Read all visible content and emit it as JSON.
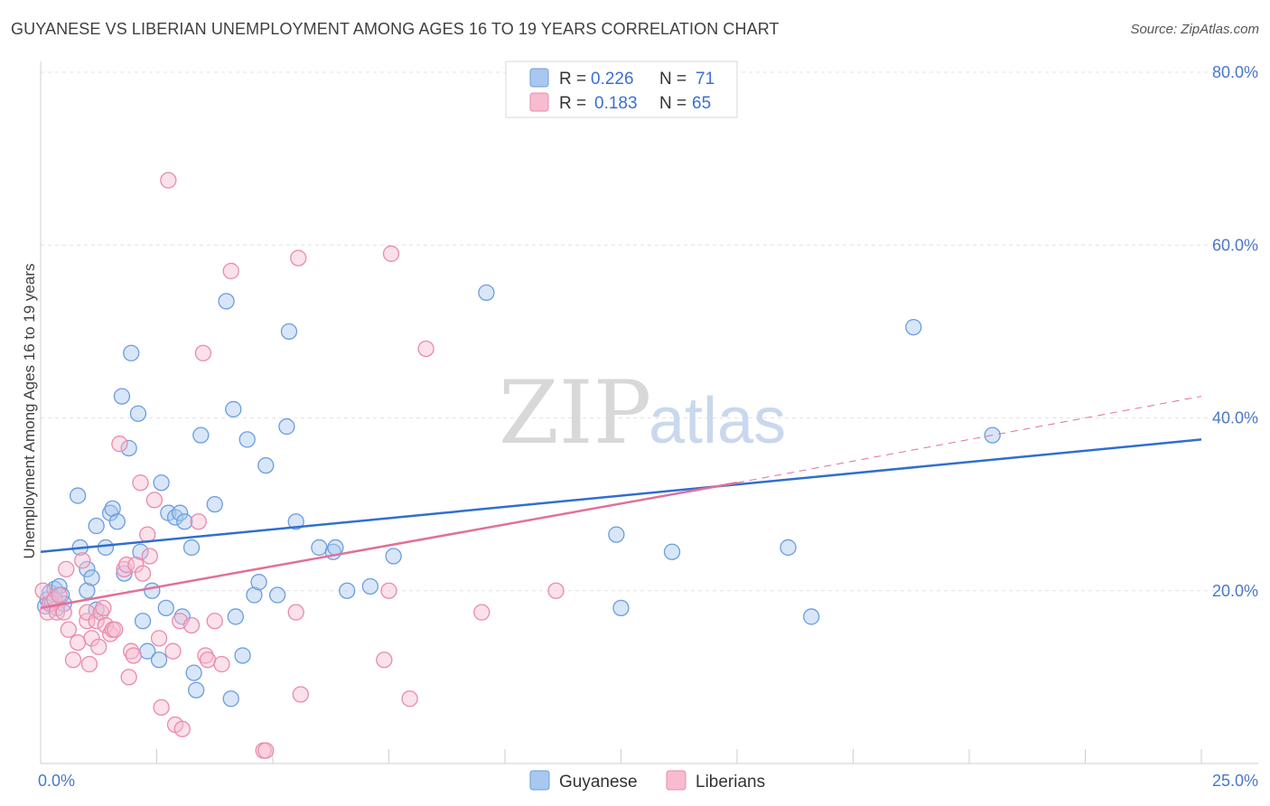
{
  "title": "GUYANESE VS LIBERIAN UNEMPLOYMENT AMONG AGES 16 TO 19 YEARS CORRELATION CHART",
  "source": "Source: ZipAtlas.com",
  "watermark": {
    "zip": "ZIP",
    "atlas": "atlas"
  },
  "legend": {
    "rows": [
      {
        "r_label": "R =",
        "r_value": "0.226",
        "n_label": "N =",
        "n_value": "71",
        "color": "#a9c8f0",
        "stroke": "#6b9de0"
      },
      {
        "r_label": "R =",
        "r_value": "0.183",
        "n_label": "N =",
        "n_value": "65",
        "color": "#f7bcd0",
        "stroke": "#ea8aab"
      }
    ]
  },
  "bottom_legend": [
    {
      "label": "Guyanese",
      "color": "#a9c8f0",
      "stroke": "#6b9de0"
    },
    {
      "label": "Liberians",
      "color": "#f7bcd0",
      "stroke": "#ea8aab"
    }
  ],
  "chart_data": {
    "type": "scatter",
    "xlabel": "",
    "ylabel": "Unemployment Among Ages 16 to 19 years",
    "xlim": [
      0,
      25
    ],
    "ylim": [
      0,
      80
    ],
    "x_tick_labels": [
      {
        "value": 0,
        "label": "0.0%"
      },
      {
        "value": 25,
        "label": "25.0%"
      }
    ],
    "y_tick_labels": [
      {
        "value": 20,
        "label": "20.0%"
      },
      {
        "value": 40,
        "label": "40.0%"
      },
      {
        "value": 60,
        "label": "60.0%"
      },
      {
        "value": 80,
        "label": "80.0%"
      }
    ],
    "grid": true,
    "series": [
      {
        "name": "Guyanese",
        "color": "#6b9de0",
        "fill": "#a9c8f0",
        "trend": {
          "x": [
            0,
            25
          ],
          "y": [
            24.5,
            37.5
          ],
          "color": "#2f6fcf"
        },
        "points": [
          [
            0.1,
            18.2
          ],
          [
            0.15,
            19.0
          ],
          [
            0.2,
            19.8
          ],
          [
            0.25,
            18.6
          ],
          [
            0.3,
            20.2
          ],
          [
            0.35,
            18.0
          ],
          [
            0.4,
            20.5
          ],
          [
            0.45,
            19.5
          ],
          [
            0.5,
            18.5
          ],
          [
            0.8,
            31.0
          ],
          [
            0.85,
            25.0
          ],
          [
            1.0,
            22.5
          ],
          [
            1.0,
            20.0
          ],
          [
            1.1,
            21.5
          ],
          [
            1.2,
            17.8
          ],
          [
            1.2,
            27.5
          ],
          [
            1.4,
            25.0
          ],
          [
            1.5,
            29.0
          ],
          [
            1.55,
            29.5
          ],
          [
            1.65,
            28.0
          ],
          [
            1.75,
            42.5
          ],
          [
            1.8,
            22.0
          ],
          [
            1.9,
            36.5
          ],
          [
            1.95,
            47.5
          ],
          [
            2.1,
            40.5
          ],
          [
            2.15,
            24.5
          ],
          [
            2.2,
            16.5
          ],
          [
            2.3,
            13.0
          ],
          [
            2.4,
            20.0
          ],
          [
            2.55,
            12.0
          ],
          [
            2.6,
            32.5
          ],
          [
            2.7,
            18.0
          ],
          [
            2.75,
            29.0
          ],
          [
            2.9,
            28.5
          ],
          [
            3.0,
            29.0
          ],
          [
            3.05,
            17.0
          ],
          [
            3.1,
            28.0
          ],
          [
            3.25,
            25.0
          ],
          [
            3.3,
            10.5
          ],
          [
            3.35,
            8.5
          ],
          [
            3.45,
            38.0
          ],
          [
            3.75,
            30.0
          ],
          [
            4.0,
            53.5
          ],
          [
            4.1,
            7.5
          ],
          [
            4.15,
            41.0
          ],
          [
            4.2,
            17.0
          ],
          [
            4.35,
            12.5
          ],
          [
            4.45,
            37.5
          ],
          [
            4.6,
            19.5
          ],
          [
            4.7,
            21.0
          ],
          [
            4.85,
            34.5
          ],
          [
            5.1,
            19.5
          ],
          [
            5.3,
            39.0
          ],
          [
            5.35,
            50.0
          ],
          [
            5.5,
            28.0
          ],
          [
            6.0,
            25.0
          ],
          [
            6.3,
            24.5
          ],
          [
            6.35,
            25.0
          ],
          [
            6.6,
            20.0
          ],
          [
            7.1,
            20.5
          ],
          [
            7.6,
            24.0
          ],
          [
            9.6,
            54.5
          ],
          [
            12.4,
            26.5
          ],
          [
            12.5,
            18.0
          ],
          [
            13.6,
            24.5
          ],
          [
            16.1,
            25.0
          ],
          [
            16.6,
            17.0
          ],
          [
            18.8,
            50.5
          ],
          [
            20.5,
            38.0
          ]
        ]
      },
      {
        "name": "Liberians",
        "color": "#ea8aab",
        "fill": "#f7bcd0",
        "trend": {
          "x": [
            0,
            15
          ],
          "y": [
            18.0,
            32.5
          ],
          "color": "#e0709a"
        },
        "trend_extension": {
          "x": [
            15,
            25
          ],
          "y": [
            32.5,
            42.5
          ]
        },
        "points": [
          [
            0.05,
            20.0
          ],
          [
            0.15,
            17.5
          ],
          [
            0.2,
            18.5
          ],
          [
            0.3,
            19.0
          ],
          [
            0.35,
            17.5
          ],
          [
            0.4,
            19.5
          ],
          [
            0.5,
            17.5
          ],
          [
            0.55,
            22.5
          ],
          [
            0.6,
            15.5
          ],
          [
            0.7,
            12.0
          ],
          [
            0.8,
            14.0
          ],
          [
            0.9,
            23.5
          ],
          [
            1.0,
            16.5
          ],
          [
            1.0,
            17.5
          ],
          [
            1.05,
            11.5
          ],
          [
            1.1,
            14.5
          ],
          [
            1.2,
            16.5
          ],
          [
            1.25,
            13.5
          ],
          [
            1.3,
            17.5
          ],
          [
            1.35,
            18.0
          ],
          [
            1.4,
            16.0
          ],
          [
            1.5,
            15.0
          ],
          [
            1.55,
            15.5
          ],
          [
            1.6,
            15.5
          ],
          [
            1.7,
            37.0
          ],
          [
            1.8,
            22.5
          ],
          [
            1.85,
            23.0
          ],
          [
            1.9,
            10.0
          ],
          [
            1.95,
            13.0
          ],
          [
            2.0,
            12.5
          ],
          [
            2.05,
            23.0
          ],
          [
            2.15,
            32.5
          ],
          [
            2.2,
            22.0
          ],
          [
            2.3,
            26.5
          ],
          [
            2.35,
            24.0
          ],
          [
            2.45,
            30.5
          ],
          [
            2.55,
            14.5
          ],
          [
            2.6,
            6.5
          ],
          [
            2.75,
            67.5
          ],
          [
            2.85,
            13.0
          ],
          [
            2.9,
            4.5
          ],
          [
            3.0,
            16.5
          ],
          [
            3.05,
            4.0
          ],
          [
            3.25,
            16.0
          ],
          [
            3.4,
            28.0
          ],
          [
            3.5,
            47.5
          ],
          [
            3.55,
            12.5
          ],
          [
            3.6,
            12.0
          ],
          [
            3.75,
            16.5
          ],
          [
            3.9,
            11.5
          ],
          [
            4.1,
            57.0
          ],
          [
            4.8,
            1.5
          ],
          [
            4.85,
            1.5
          ],
          [
            5.5,
            17.5
          ],
          [
            5.55,
            58.5
          ],
          [
            5.6,
            8.0
          ],
          [
            7.4,
            12.0
          ],
          [
            7.5,
            20.0
          ],
          [
            7.55,
            59.0
          ],
          [
            7.95,
            7.5
          ],
          [
            8.3,
            48.0
          ],
          [
            9.5,
            17.5
          ],
          [
            11.1,
            20.0
          ]
        ]
      }
    ]
  }
}
